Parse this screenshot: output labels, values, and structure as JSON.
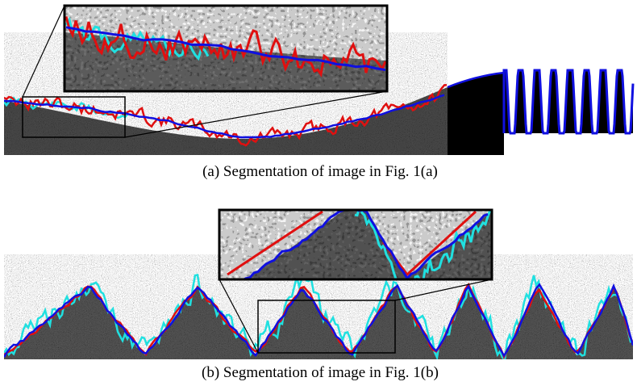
{
  "figure": {
    "captions": [
      "(a) Segmentation of image in Fig. 1(a)",
      "(b) Segmentation of image in Fig. 1(b)"
    ]
  }
}
